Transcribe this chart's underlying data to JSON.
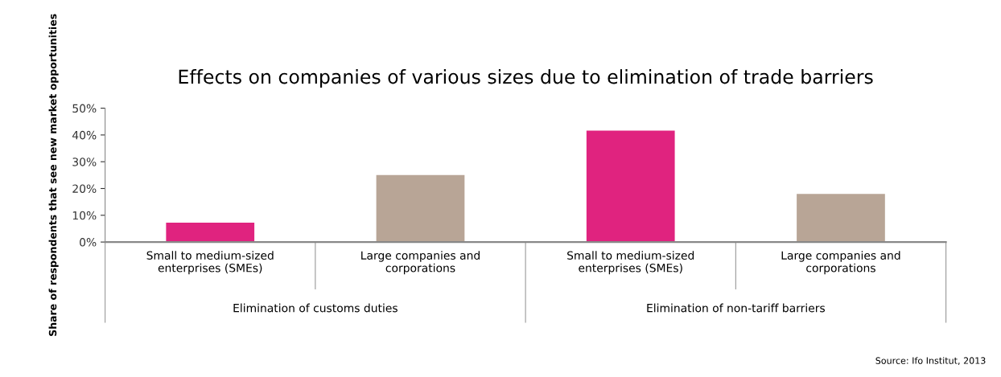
{
  "chart_data": {
    "type": "bar",
    "title": "Effects on companies of various sizes due to elimination of trade barriers",
    "ylabel": "Share of respondents that see new market opportunities",
    "categories": [
      "Small to medium-sized\nenterprises (SMEs)",
      "Large companies and\ncorporations",
      "Small to medium-sized\nenterprises (SMEs)",
      "Large companies and\ncorporations"
    ],
    "values": [
      7.2,
      25,
      41.6,
      18
    ],
    "colors": [
      "#e0237f",
      "#b8a596",
      "#e0237f",
      "#b8a596"
    ],
    "ylim": [
      0,
      50
    ],
    "yticks": [
      {
        "value": 0,
        "label": "0%"
      },
      {
        "value": 10,
        "label": "10%"
      },
      {
        "value": 20,
        "label": "20%"
      },
      {
        "value": 30,
        "label": "30%"
      },
      {
        "value": 40,
        "label": "40%"
      },
      {
        "value": 50,
        "label": "50%"
      }
    ],
    "grid": false,
    "annotations": [
      "Elimination of customs duties",
      "Elimination of non-tariff barriers",
      "Source: Ifo Institut, 2013"
    ]
  }
}
